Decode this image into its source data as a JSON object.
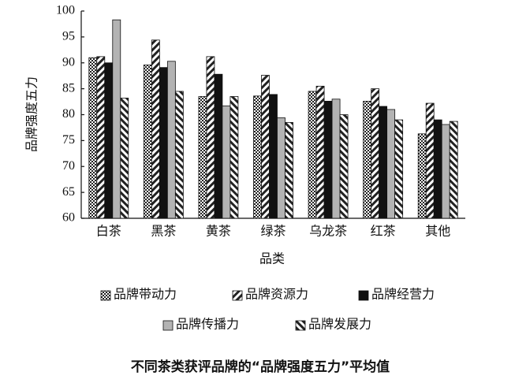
{
  "chart_data": {
    "type": "bar",
    "title": "不同茶类获评品牌的“品牌强度五力”平均值",
    "x_label": "品类",
    "y_label": "品牌强度五力",
    "categories": [
      "白茶",
      "黑茶",
      "黄茶",
      "绿茶",
      "乌龙茶",
      "红茶",
      "其他"
    ],
    "series": [
      {
        "name": "品牌带动力",
        "color": "#222222",
        "pattern": "checker",
        "values": [
          91.0,
          89.6,
          83.5,
          83.6,
          84.5,
          82.6,
          76.3
        ]
      },
      {
        "name": "品牌资源力",
        "color": "#222222",
        "pattern": "hatch-forward",
        "values": [
          91.2,
          94.4,
          91.2,
          87.6,
          85.5,
          85.0,
          82.2
        ]
      },
      {
        "name": "品牌经营力",
        "color": "#111111",
        "pattern": "solid",
        "values": [
          90.0,
          89.1,
          87.8,
          83.9,
          82.6,
          81.6,
          79.0
        ]
      },
      {
        "name": "品牌传播力",
        "color": "#b3b3b3",
        "pattern": "solid",
        "values": [
          98.3,
          90.3,
          81.7,
          79.4,
          83.0,
          81.0,
          78.1
        ]
      },
      {
        "name": "品牌发展力",
        "color": "#222222",
        "pattern": "hatch-back",
        "values": [
          83.2,
          84.5,
          83.5,
          78.5,
          80.0,
          79.0,
          78.7
        ]
      }
    ],
    "ylim": [
      60,
      100
    ],
    "yticks": [
      60,
      65,
      70,
      75,
      80,
      85,
      90,
      95,
      100
    ],
    "grid": false
  }
}
